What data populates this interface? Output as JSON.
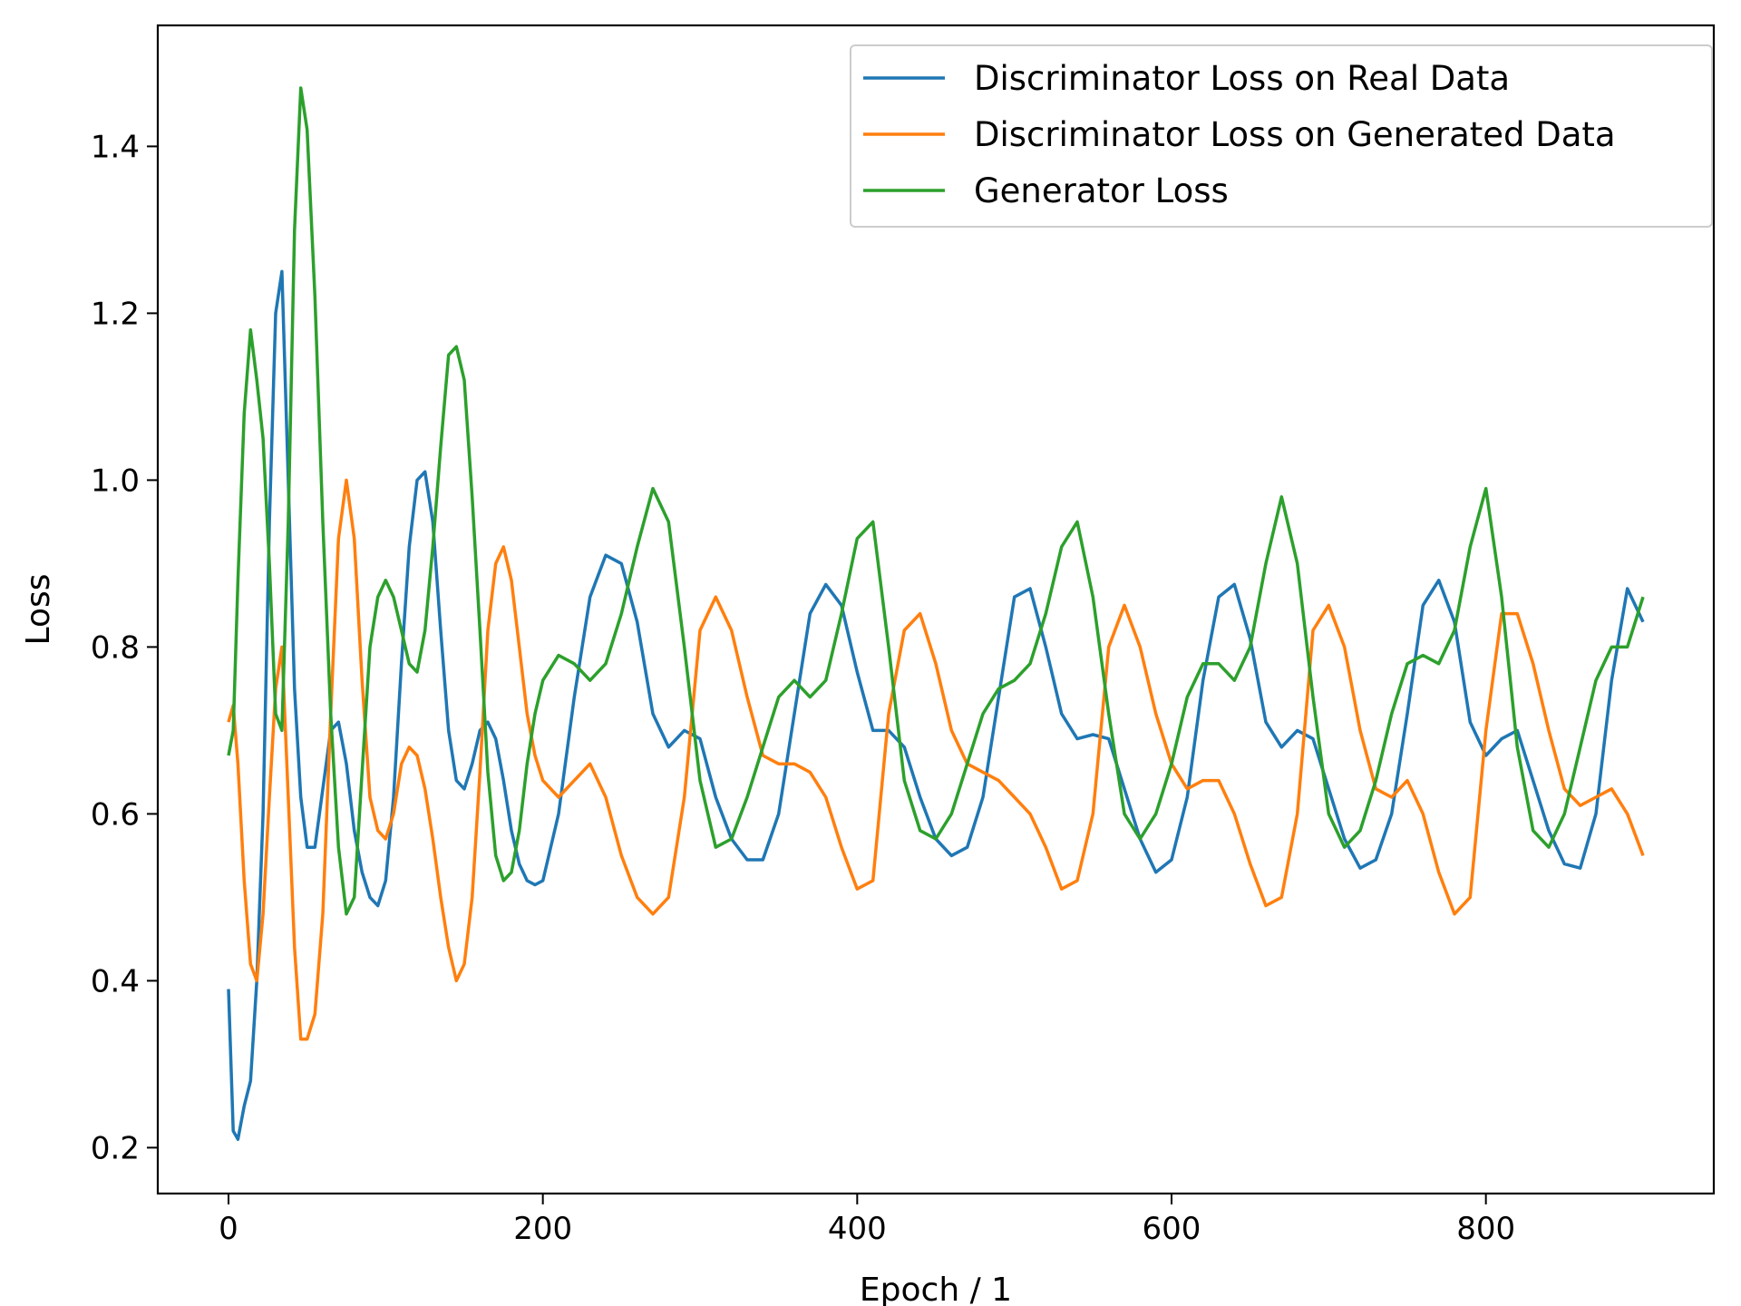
{
  "chart_data": {
    "type": "line",
    "title": "",
    "xlabel": "Epoch / 1",
    "ylabel": "Loss",
    "xlim": [
      -45,
      945
    ],
    "ylim": [
      0.145,
      1.545
    ],
    "xticks": [
      0,
      200,
      400,
      600,
      800
    ],
    "xtick_labels": [
      "0",
      "200",
      "400",
      "600",
      "800"
    ],
    "yticks": [
      0.2,
      0.4,
      0.6,
      0.8,
      1.0,
      1.2,
      1.4
    ],
    "ytick_labels": [
      "0.2",
      "0.4",
      "0.6",
      "0.8",
      "1.0",
      "1.2",
      "1.4"
    ],
    "grid": false,
    "legend_position": "top-right",
    "series": [
      {
        "name": "Discriminator Loss on Real Data",
        "color": "#1f77b4",
        "x": [
          0,
          3,
          6,
          10,
          14,
          18,
          22,
          26,
          30,
          34,
          38,
          42,
          46,
          50,
          55,
          60,
          65,
          70,
          75,
          80,
          85,
          90,
          95,
          100,
          105,
          110,
          115,
          120,
          125,
          130,
          135,
          140,
          145,
          150,
          155,
          160,
          165,
          170,
          175,
          180,
          185,
          190,
          195,
          200,
          210,
          220,
          230,
          240,
          250,
          260,
          270,
          280,
          290,
          300,
          310,
          320,
          330,
          340,
          350,
          360,
          370,
          380,
          390,
          400,
          410,
          420,
          430,
          440,
          450,
          460,
          470,
          480,
          490,
          500,
          510,
          520,
          530,
          540,
          550,
          560,
          570,
          580,
          590,
          600,
          610,
          620,
          630,
          640,
          650,
          660,
          670,
          680,
          690,
          700,
          710,
          720,
          730,
          740,
          750,
          760,
          770,
          780,
          790,
          800,
          810,
          820,
          830,
          840,
          850,
          860,
          870,
          880,
          890,
          900
        ],
        "y": [
          0.39,
          0.22,
          0.21,
          0.25,
          0.28,
          0.4,
          0.6,
          0.95,
          1.2,
          1.25,
          1.0,
          0.75,
          0.62,
          0.56,
          0.56,
          0.63,
          0.7,
          0.71,
          0.66,
          0.58,
          0.53,
          0.5,
          0.49,
          0.52,
          0.62,
          0.78,
          0.92,
          1.0,
          1.01,
          0.95,
          0.82,
          0.7,
          0.64,
          0.63,
          0.66,
          0.7,
          0.71,
          0.69,
          0.64,
          0.58,
          0.54,
          0.52,
          0.515,
          0.52,
          0.6,
          0.74,
          0.86,
          0.91,
          0.9,
          0.83,
          0.72,
          0.68,
          0.7,
          0.69,
          0.62,
          0.57,
          0.545,
          0.545,
          0.6,
          0.72,
          0.84,
          0.875,
          0.85,
          0.77,
          0.7,
          0.7,
          0.68,
          0.62,
          0.57,
          0.55,
          0.56,
          0.62,
          0.74,
          0.86,
          0.87,
          0.8,
          0.72,
          0.69,
          0.695,
          0.69,
          0.63,
          0.57,
          0.53,
          0.545,
          0.62,
          0.76,
          0.86,
          0.875,
          0.81,
          0.71,
          0.68,
          0.7,
          0.69,
          0.63,
          0.57,
          0.535,
          0.545,
          0.6,
          0.72,
          0.85,
          0.88,
          0.83,
          0.71,
          0.67,
          0.69,
          0.7,
          0.64,
          0.58,
          0.54,
          0.535,
          0.6,
          0.76,
          0.87,
          0.83
        ]
      },
      {
        "name": "Discriminator Loss on Generated Data",
        "color": "#ff7f0e",
        "x": [
          0,
          3,
          6,
          10,
          14,
          18,
          22,
          26,
          30,
          34,
          38,
          42,
          46,
          50,
          55,
          60,
          65,
          70,
          75,
          80,
          85,
          90,
          95,
          100,
          105,
          110,
          115,
          120,
          125,
          130,
          135,
          140,
          145,
          150,
          155,
          160,
          165,
          170,
          175,
          180,
          185,
          190,
          195,
          200,
          210,
          220,
          230,
          240,
          250,
          260,
          270,
          280,
          290,
          300,
          310,
          320,
          330,
          340,
          350,
          360,
          370,
          380,
          390,
          400,
          410,
          420,
          430,
          440,
          450,
          460,
          470,
          480,
          490,
          500,
          510,
          520,
          530,
          540,
          550,
          560,
          570,
          580,
          590,
          600,
          610,
          620,
          630,
          640,
          650,
          660,
          670,
          680,
          690,
          700,
          710,
          720,
          730,
          740,
          750,
          760,
          770,
          780,
          790,
          800,
          810,
          820,
          830,
          840,
          850,
          860,
          870,
          880,
          890,
          900
        ],
        "y": [
          0.71,
          0.73,
          0.66,
          0.52,
          0.42,
          0.4,
          0.48,
          0.62,
          0.75,
          0.8,
          0.62,
          0.44,
          0.33,
          0.33,
          0.36,
          0.48,
          0.72,
          0.93,
          1.0,
          0.93,
          0.76,
          0.62,
          0.58,
          0.57,
          0.6,
          0.66,
          0.68,
          0.67,
          0.63,
          0.57,
          0.5,
          0.44,
          0.4,
          0.42,
          0.5,
          0.65,
          0.82,
          0.9,
          0.92,
          0.88,
          0.8,
          0.72,
          0.67,
          0.64,
          0.62,
          0.64,
          0.66,
          0.62,
          0.55,
          0.5,
          0.48,
          0.5,
          0.62,
          0.82,
          0.86,
          0.82,
          0.74,
          0.67,
          0.66,
          0.66,
          0.65,
          0.62,
          0.56,
          0.51,
          0.52,
          0.72,
          0.82,
          0.84,
          0.78,
          0.7,
          0.66,
          0.65,
          0.64,
          0.62,
          0.6,
          0.56,
          0.51,
          0.52,
          0.6,
          0.8,
          0.85,
          0.8,
          0.72,
          0.66,
          0.63,
          0.64,
          0.64,
          0.6,
          0.54,
          0.49,
          0.5,
          0.6,
          0.82,
          0.85,
          0.8,
          0.7,
          0.63,
          0.62,
          0.64,
          0.6,
          0.53,
          0.48,
          0.5,
          0.7,
          0.84,
          0.84,
          0.78,
          0.7,
          0.63,
          0.61,
          0.62,
          0.63,
          0.6,
          0.55
        ]
      },
      {
        "name": "Generator Loss",
        "color": "#2ca02c",
        "x": [
          0,
          3,
          6,
          10,
          14,
          18,
          22,
          26,
          30,
          34,
          38,
          42,
          46,
          50,
          55,
          60,
          65,
          70,
          75,
          80,
          85,
          90,
          95,
          100,
          105,
          110,
          115,
          120,
          125,
          130,
          135,
          140,
          145,
          150,
          155,
          160,
          165,
          170,
          175,
          180,
          185,
          190,
          195,
          200,
          210,
          220,
          230,
          240,
          250,
          260,
          270,
          280,
          290,
          300,
          310,
          320,
          330,
          340,
          350,
          360,
          370,
          380,
          390,
          400,
          410,
          420,
          430,
          440,
          450,
          460,
          470,
          480,
          490,
          500,
          510,
          520,
          530,
          540,
          550,
          560,
          570,
          580,
          590,
          600,
          610,
          620,
          630,
          640,
          650,
          660,
          670,
          680,
          690,
          700,
          710,
          720,
          730,
          740,
          750,
          760,
          770,
          780,
          790,
          800,
          810,
          820,
          830,
          840,
          850,
          860,
          870,
          880,
          890,
          900
        ],
        "y": [
          0.67,
          0.7,
          0.88,
          1.08,
          1.18,
          1.12,
          1.05,
          0.9,
          0.72,
          0.7,
          0.95,
          1.3,
          1.47,
          1.42,
          1.22,
          0.95,
          0.72,
          0.56,
          0.48,
          0.5,
          0.65,
          0.8,
          0.86,
          0.88,
          0.86,
          0.82,
          0.78,
          0.77,
          0.82,
          0.92,
          1.04,
          1.15,
          1.16,
          1.12,
          0.98,
          0.82,
          0.65,
          0.55,
          0.52,
          0.53,
          0.58,
          0.66,
          0.72,
          0.76,
          0.79,
          0.78,
          0.76,
          0.78,
          0.84,
          0.92,
          0.99,
          0.95,
          0.8,
          0.64,
          0.56,
          0.57,
          0.62,
          0.68,
          0.74,
          0.76,
          0.74,
          0.76,
          0.84,
          0.93,
          0.95,
          0.8,
          0.64,
          0.58,
          0.57,
          0.6,
          0.66,
          0.72,
          0.75,
          0.76,
          0.78,
          0.84,
          0.92,
          0.95,
          0.86,
          0.72,
          0.6,
          0.57,
          0.6,
          0.66,
          0.74,
          0.78,
          0.78,
          0.76,
          0.8,
          0.9,
          0.98,
          0.9,
          0.74,
          0.6,
          0.56,
          0.58,
          0.64,
          0.72,
          0.78,
          0.79,
          0.78,
          0.82,
          0.92,
          0.99,
          0.86,
          0.68,
          0.58,
          0.56,
          0.6,
          0.68,
          0.76,
          0.8,
          0.8,
          0.86
        ]
      }
    ]
  }
}
